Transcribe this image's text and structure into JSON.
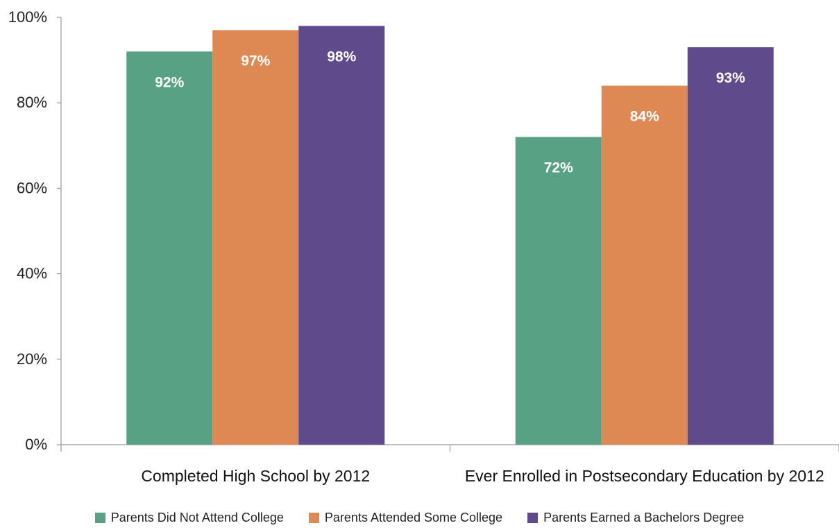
{
  "chart_data": {
    "type": "bar",
    "categories": [
      "Completed High School by 2012",
      "Ever Enrolled in Postsecondary Education by 2012"
    ],
    "series": [
      {
        "name": "Parents Did Not Attend College",
        "values": [
          92,
          72
        ],
        "labels": [
          "92%",
          "72%"
        ],
        "color": "#58a184"
      },
      {
        "name": "Parents Attended Some College",
        "values": [
          97,
          84
        ],
        "labels": [
          "97%",
          "84%"
        ],
        "color": "#de8953"
      },
      {
        "name": "Parents Earned a Bachelors Degree",
        "values": [
          98,
          93
        ],
        "labels": [
          "98%",
          "93%"
        ],
        "color": "#5f4b8b"
      }
    ],
    "yticks": [
      "0%",
      "20%",
      "40%",
      "60%",
      "80%",
      "100%"
    ],
    "ylim": [
      0,
      100
    ],
    "grid": false,
    "legend_position": "bottom",
    "title": "",
    "xlabel": "",
    "ylabel": ""
  }
}
